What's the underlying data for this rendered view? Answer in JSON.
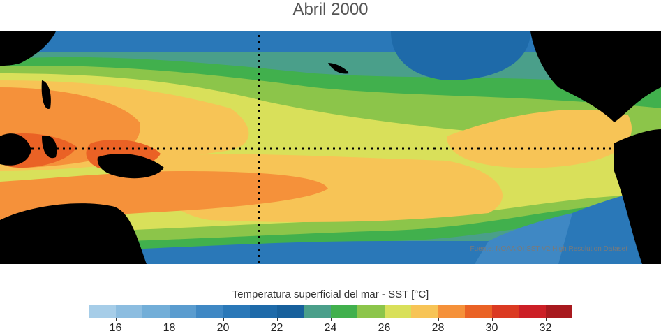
{
  "title": "Abril 2000",
  "source": "Fuente: NOAA OI SST V2 High Resolution Dataset",
  "colorbar": {
    "label": "Temperatura superficial del mar - SST  [°C]",
    "min": 15,
    "max": 33,
    "step": 1,
    "colors": [
      "#a6cde8",
      "#8cbde0",
      "#72aed8",
      "#5a9ccf",
      "#3f88c4",
      "#2a78b8",
      "#1e6aa9",
      "#17609c",
      "#4a9f8a",
      "#41b04d",
      "#8cc54a",
      "#d9e05a",
      "#f7c456",
      "#f5913a",
      "#ea6225",
      "#db3a22",
      "#cc1f26",
      "#a8191e"
    ],
    "ticks": [
      "16",
      "18",
      "20",
      "22",
      "24",
      "26",
      "28",
      "30",
      "32"
    ]
  },
  "map": {
    "region": "Pacífico tropical",
    "reference_lines": [
      "equator",
      "dateline"
    ]
  }
}
